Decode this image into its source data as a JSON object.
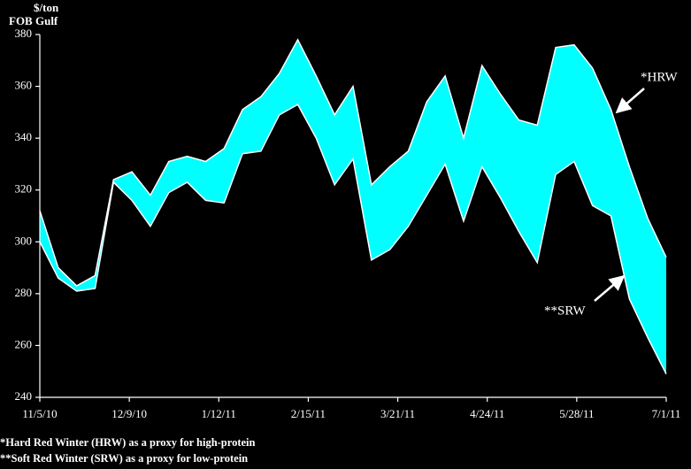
{
  "chart_data": {
    "type": "band",
    "y_label": [
      "$/ton",
      "FOB Gulf"
    ],
    "x": [
      "2010-11-05",
      "2010-11-12",
      "2010-11-19",
      "2010-11-26",
      "2010-12-03",
      "2010-12-10",
      "2010-12-17",
      "2010-12-24",
      "2010-12-31",
      "2011-01-07",
      "2011-01-14",
      "2011-01-21",
      "2011-01-28",
      "2011-02-04",
      "2011-02-11",
      "2011-02-18",
      "2011-02-25",
      "2011-03-04",
      "2011-03-11",
      "2011-03-18",
      "2011-03-25",
      "2011-04-01",
      "2011-04-08",
      "2011-04-15",
      "2011-04-22",
      "2011-04-29",
      "2011-05-06",
      "2011-05-13",
      "2011-05-20",
      "2011-05-27",
      "2011-06-03",
      "2011-06-10",
      "2011-06-17",
      "2011-06-24",
      "2011-07-01"
    ],
    "series": [
      {
        "color": "#ffffff",
        "values": [
          312,
          290,
          283,
          287,
          324,
          327,
          318,
          331,
          333,
          331,
          336,
          351,
          356,
          365,
          378,
          364,
          349,
          360,
          322,
          329,
          335,
          354,
          364,
          340,
          368,
          357,
          347,
          345,
          375,
          376,
          367,
          351,
          329,
          309,
          294
        ]
      },
      {
        "color": "#ffffff",
        "values": [
          300,
          286,
          281,
          282,
          323,
          316,
          306,
          319,
          323,
          316,
          315,
          334,
          335,
          349,
          353,
          340,
          322,
          332,
          293,
          297,
          306,
          318,
          330,
          308,
          329,
          317,
          304,
          292,
          326,
          331,
          314,
          310,
          278,
          263,
          249
        ]
      }
    ],
    "fill_color": "#00ffff",
    "ylim": [
      240,
      380
    ],
    "yticks": [
      240,
      260,
      280,
      300,
      320,
      340,
      360,
      380
    ],
    "xlim": [
      "2010-11-05",
      "2011-07-01"
    ],
    "xticks": [
      {
        "value": "2010-11-05",
        "label": "11/5/10"
      },
      {
        "value": "2010-12-09",
        "label": "12/9/10"
      },
      {
        "value": "2011-01-12",
        "label": "1/12/11"
      },
      {
        "value": "2011-02-15",
        "label": "2/15/11"
      },
      {
        "value": "2011-03-21",
        "label": "3/21/11"
      },
      {
        "value": "2011-04-24",
        "label": "4/24/11"
      },
      {
        "value": "2011-05-28",
        "label": "5/28/11"
      },
      {
        "value": "2011-07-01",
        "label": "7/1/11"
      }
    ],
    "annotations": [
      "*HRW",
      "**SRW"
    ],
    "footnotes": [
      "*Hard Red Winter (HRW) as a proxy for high-protein",
      "**Soft Red Winter (SRW) as a proxy for low-protein"
    ]
  }
}
